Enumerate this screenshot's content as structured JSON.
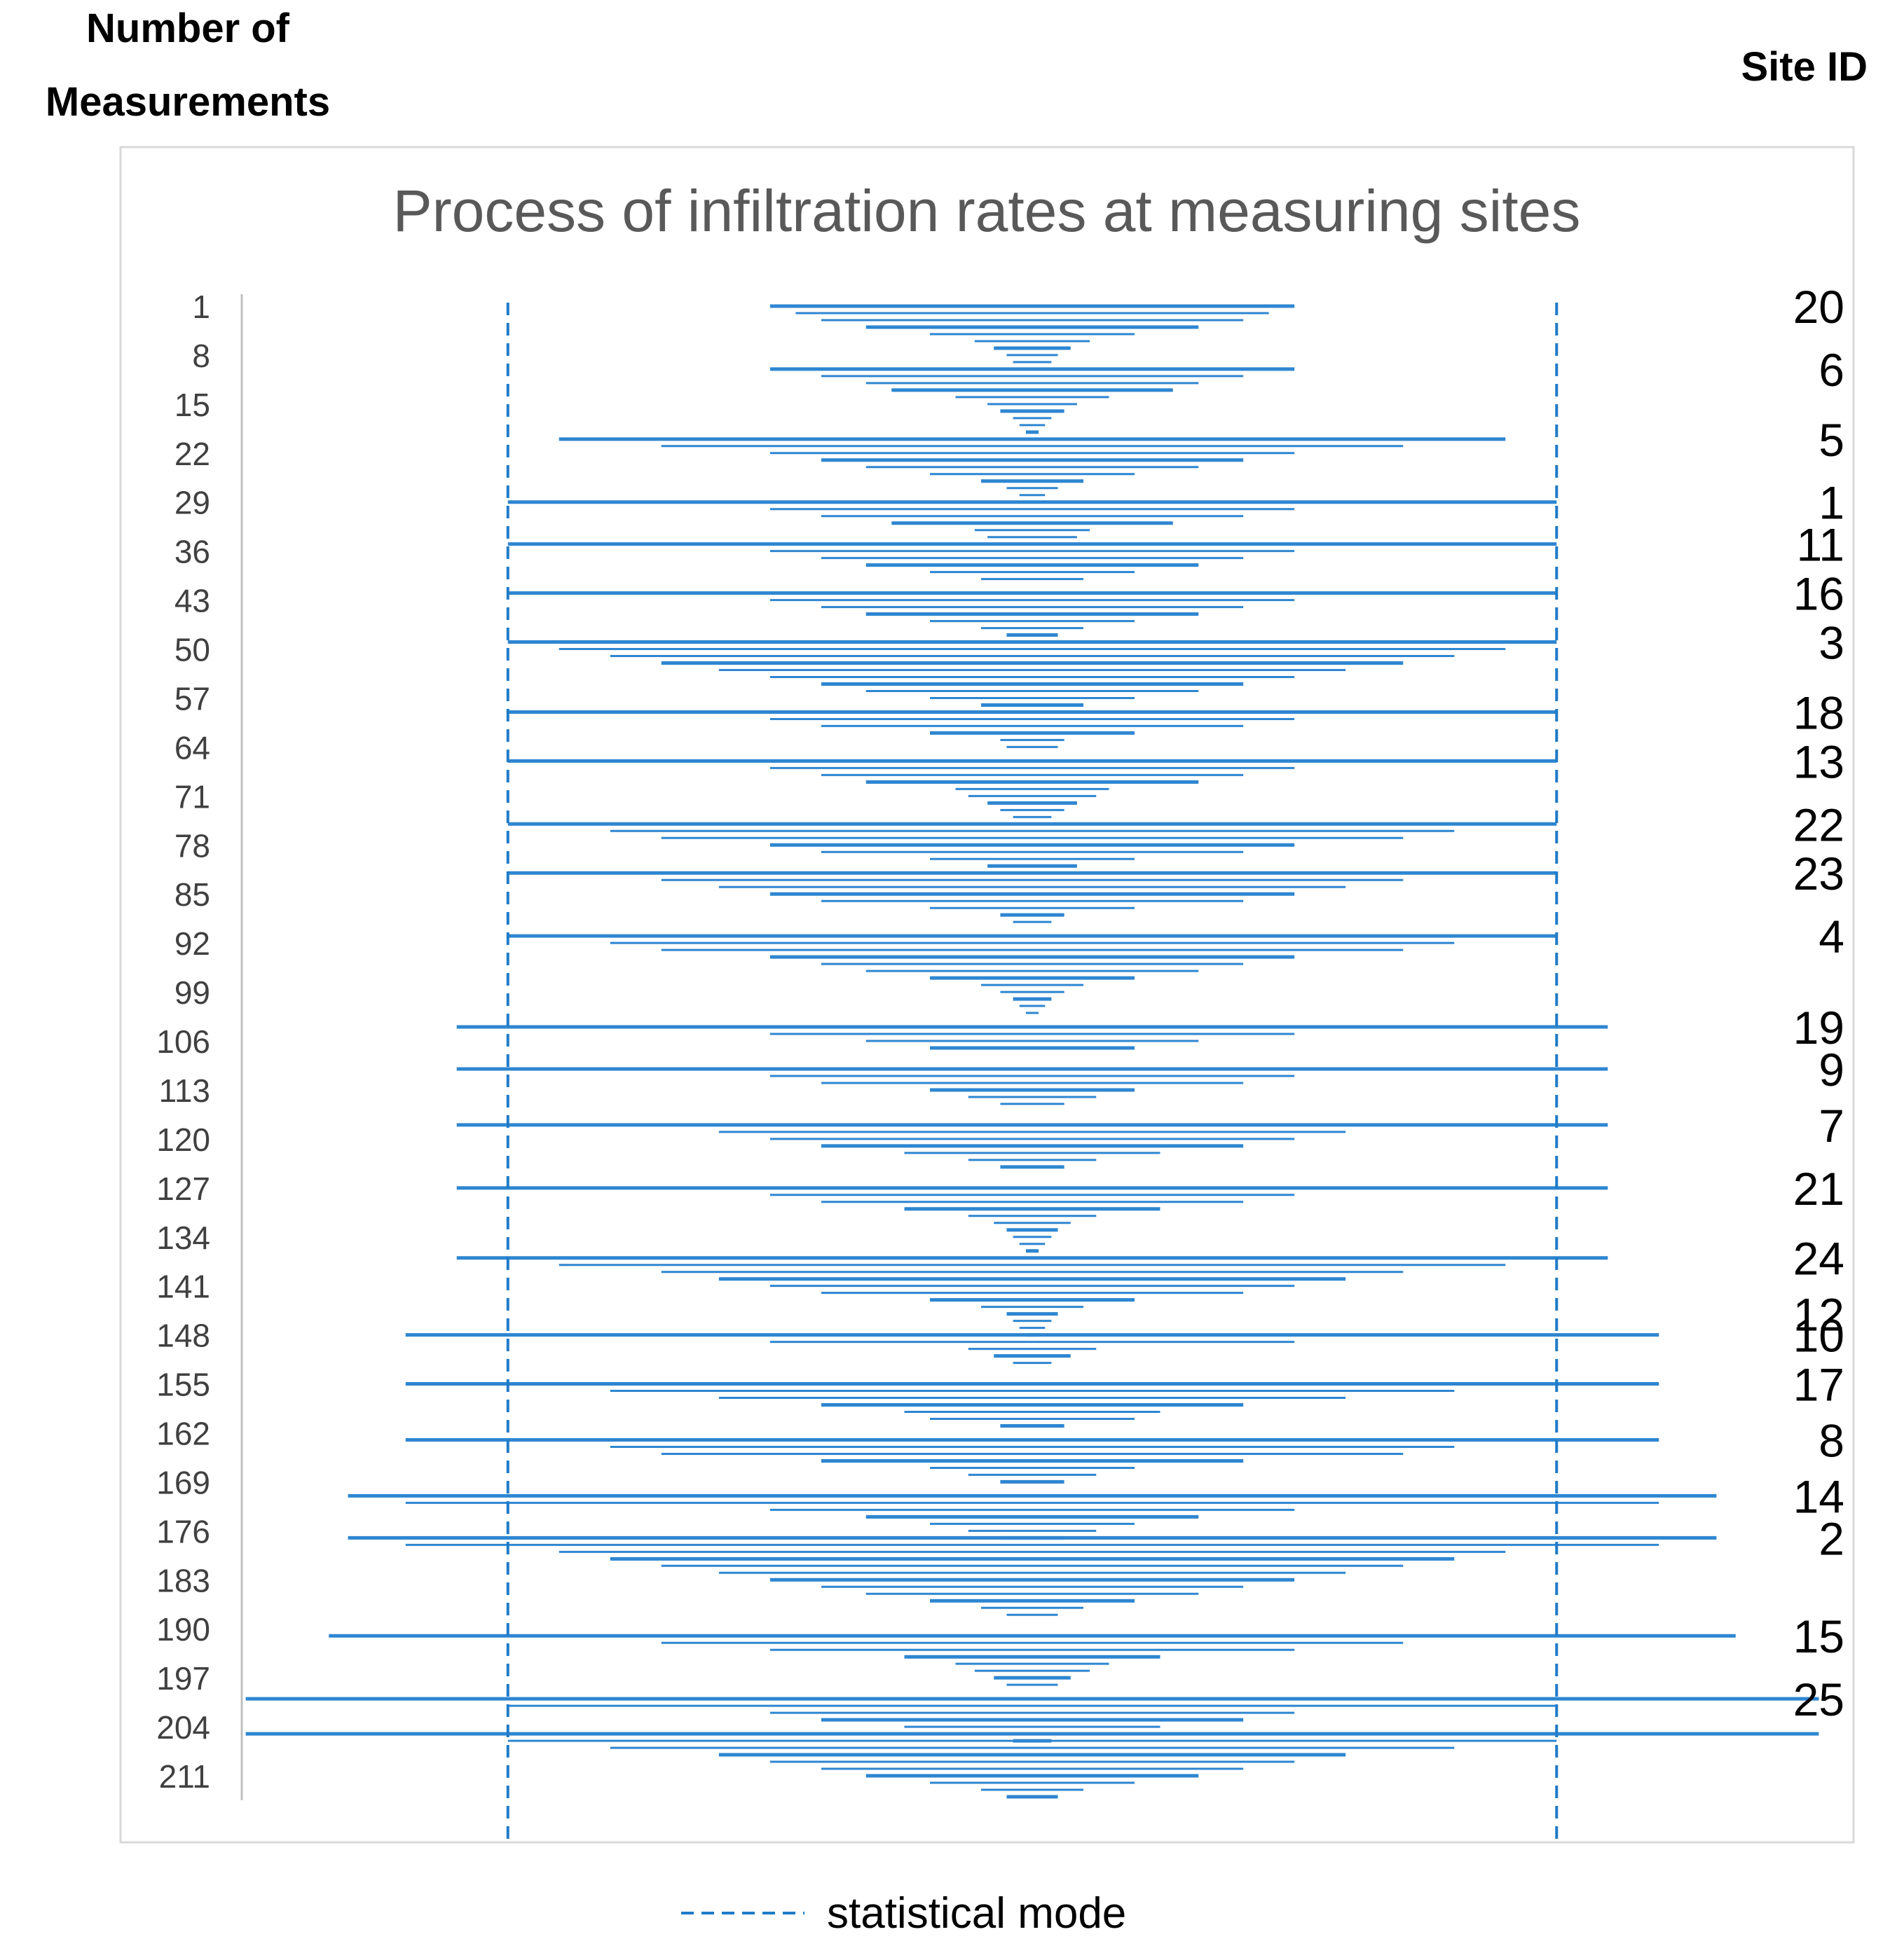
{
  "headers": {
    "left_line1": "Number of",
    "left_line2": "Measurements",
    "right": "Site ID"
  },
  "legend": {
    "label": "statistical mode"
  },
  "colors": {
    "line": "#2E86D1",
    "mode": "#1F7BC8",
    "axis": "#BFBFBF",
    "frame": "#D9D9D9"
  },
  "chart_data": {
    "type": "bar",
    "title": "Process of infiltration rates at measuring sites",
    "xlabel": "",
    "ylabel": "Number of Measurements",
    "y_tick_labels": [
      "1",
      "8",
      "15",
      "22",
      "29",
      "36",
      "43",
      "50",
      "57",
      "64",
      "71",
      "78",
      "85",
      "92",
      "99",
      "106",
      "113",
      "120",
      "127",
      "134",
      "141",
      "148",
      "155",
      "162",
      "169",
      "176",
      "183",
      "190",
      "197",
      "204",
      "211"
    ],
    "y_range": [
      1,
      214
    ],
    "x_range": [
      -1,
      1
    ],
    "mode_lines": [
      -0.82,
      0.82
    ],
    "sites": [
      {
        "id": "20",
        "at": 1,
        "widths": [
          0.41,
          0.37,
          0.33,
          0.26,
          0.16,
          0.09,
          0.06,
          0.04,
          0.03
        ]
      },
      {
        "id": "6",
        "at": 10,
        "widths": [
          0.41,
          0.33,
          0.26,
          0.22,
          0.12,
          0.07,
          0.05,
          0.03,
          0.02,
          0.01
        ]
      },
      {
        "id": "5",
        "at": 20,
        "widths": [
          0.74,
          0.58,
          0.41,
          0.33,
          0.26,
          0.16,
          0.08,
          0.04,
          0.02
        ]
      },
      {
        "id": "1",
        "at": 29,
        "widths": [
          0.82,
          0.41,
          0.33,
          0.22,
          0.09,
          0.07
        ]
      },
      {
        "id": "11",
        "at": 35,
        "widths": [
          0.82,
          0.41,
          0.33,
          0.26,
          0.16,
          0.08
        ]
      },
      {
        "id": "16",
        "at": 42,
        "widths": [
          0.82,
          0.41,
          0.33,
          0.26,
          0.16,
          0.08,
          0.04
        ]
      },
      {
        "id": "3",
        "at": 49,
        "widths": [
          0.82,
          0.74,
          0.66,
          0.58,
          0.49,
          0.41,
          0.33,
          0.26,
          0.16,
          0.08,
          0.05
        ]
      },
      {
        "id": "18",
        "at": 59,
        "widths": [
          0.82,
          0.41,
          0.33,
          0.16,
          0.05,
          0.04
        ]
      },
      {
        "id": "13",
        "at": 66,
        "widths": [
          0.82,
          0.41,
          0.33,
          0.26,
          0.12,
          0.1,
          0.07,
          0.05,
          0.03
        ]
      },
      {
        "id": "22",
        "at": 75,
        "widths": [
          0.82,
          0.66,
          0.58,
          0.41,
          0.33,
          0.16,
          0.07,
          0.05
        ]
      },
      {
        "id": "23",
        "at": 82,
        "widths": [
          0.82,
          0.58,
          0.49,
          0.41,
          0.33,
          0.16,
          0.05,
          0.03
        ]
      },
      {
        "id": "4",
        "at": 91,
        "widths": [
          0.82,
          0.66,
          0.58,
          0.41,
          0.33,
          0.26,
          0.16,
          0.08,
          0.05,
          0.03,
          0.02,
          0.01
        ]
      },
      {
        "id": "19",
        "at": 104,
        "widths": [
          0.9,
          0.41,
          0.26,
          0.16
        ]
      },
      {
        "id": "9",
        "at": 110,
        "widths": [
          0.9,
          0.41,
          0.33,
          0.16,
          0.1,
          0.05
        ]
      },
      {
        "id": "7",
        "at": 118,
        "widths": [
          0.9,
          0.49,
          0.41,
          0.33,
          0.2,
          0.1,
          0.05
        ]
      },
      {
        "id": "21",
        "at": 127,
        "widths": [
          0.9,
          0.41,
          0.33,
          0.2,
          0.1,
          0.06,
          0.04,
          0.03,
          0.02,
          0.01
        ]
      },
      {
        "id": "24",
        "at": 137,
        "widths": [
          0.9,
          0.74,
          0.58,
          0.49,
          0.41,
          0.33,
          0.16,
          0.08
        ]
      },
      {
        "id": "12",
        "at": 145,
        "widths": [
          0.04,
          0.03,
          0.02,
          0.01
        ]
      },
      {
        "id": "10",
        "at": 148,
        "widths": [
          0.98,
          0.41,
          0.1,
          0.06,
          0.03
        ]
      },
      {
        "id": "17",
        "at": 155,
        "widths": [
          0.98,
          0.66,
          0.49,
          0.33,
          0.2,
          0.16,
          0.05
        ]
      },
      {
        "id": "8",
        "at": 163,
        "widths": [
          0.98,
          0.66,
          0.58,
          0.33,
          0.16,
          0.1,
          0.05
        ]
      },
      {
        "id": "14",
        "at": 171,
        "widths": [
          1.07,
          0.98,
          0.41,
          0.26,
          0.16,
          0.1,
          0.05
        ]
      },
      {
        "id": "2",
        "at": 177,
        "widths": [
          1.07,
          0.98,
          0.74,
          0.66,
          0.58,
          0.49,
          0.41,
          0.33,
          0.26,
          0.16,
          0.08,
          0.04
        ]
      },
      {
        "id": "15",
        "at": 191,
        "widths": [
          1.1,
          0.58,
          0.41,
          0.2,
          0.12,
          0.09,
          0.06,
          0.04
        ]
      },
      {
        "id": "25",
        "at": 200,
        "widths": [
          1.23,
          0.82,
          0.41,
          0.33,
          0.2,
          0.08,
          0.03
        ]
      },
      {
        "id": "",
        "at": 205,
        "widths": [
          1.23,
          0.82,
          0.66,
          0.49,
          0.41,
          0.33,
          0.26,
          0.16,
          0.08,
          0.04
        ]
      }
    ]
  }
}
